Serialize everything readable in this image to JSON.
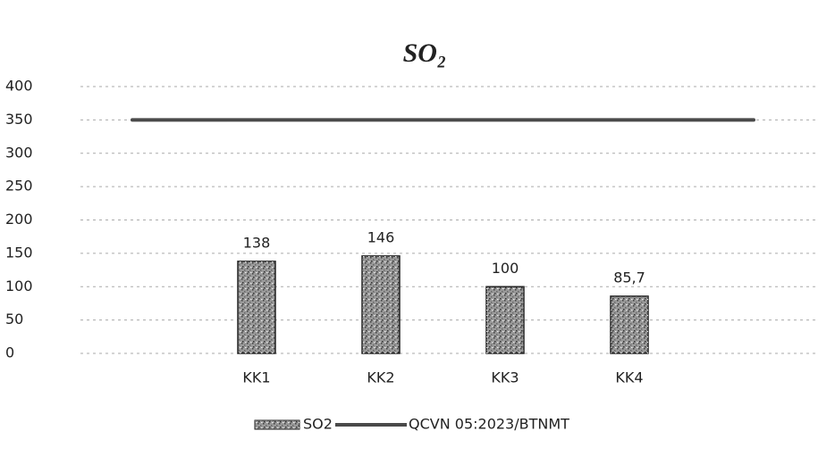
{
  "chart_data": {
    "type": "bar",
    "title": "SO₂",
    "categories": [
      "KK1",
      "KK2",
      "KK3",
      "KK4"
    ],
    "series": [
      {
        "name": "SO2",
        "type": "bar",
        "color": "#9a9a9a",
        "values": [
          138,
          146,
          100,
          85.7
        ],
        "value_labels": [
          "138",
          "146",
          "100",
          "85,7"
        ]
      },
      {
        "name": "QCVN 05:2023/BTNMT",
        "type": "line",
        "color": "#4a4a4a",
        "values": [
          350,
          350,
          350,
          350
        ]
      }
    ],
    "ylim": [
      0,
      400
    ],
    "yticks": [
      0,
      50,
      100,
      150,
      200,
      250,
      300,
      350,
      400
    ],
    "grid": true
  }
}
